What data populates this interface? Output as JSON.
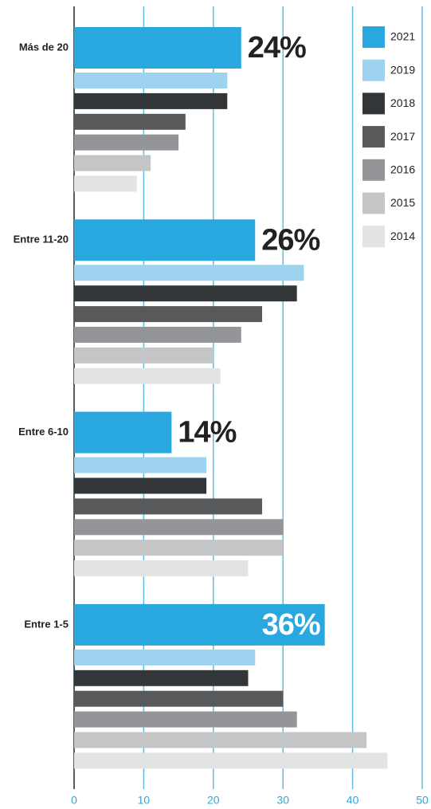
{
  "chart_data": {
    "type": "hbar",
    "categories": [
      "Más de 20",
      "Entre 11-20",
      "Entre 6-10",
      "Entre 1-5"
    ],
    "series": [
      {
        "name": "2021",
        "color": "#29a8e0",
        "values": [
          24,
          26,
          14,
          36
        ],
        "value_labels": [
          "24%",
          "26%",
          "14%",
          "36%"
        ]
      },
      {
        "name": "2019",
        "color": "#9dd3ef",
        "values": [
          22,
          33,
          19,
          26
        ]
      },
      {
        "name": "2018",
        "color": "#333638",
        "values": [
          22,
          32,
          19,
          25
        ]
      },
      {
        "name": "2017",
        "color": "#58595b",
        "values": [
          16,
          27,
          27,
          30
        ]
      },
      {
        "name": "2016",
        "color": "#939598",
        "values": [
          15,
          24,
          30,
          32
        ]
      },
      {
        "name": "2015",
        "color": "#c4c5c6",
        "values": [
          11,
          20,
          30,
          42
        ]
      },
      {
        "name": "2014",
        "color": "#e2e3e3",
        "values": [
          9,
          21,
          25,
          45
        ]
      }
    ],
    "xlim": [
      0,
      50
    ],
    "xticks": [
      0,
      10,
      20,
      30,
      40,
      50
    ],
    "grid": true,
    "legend": "upper right"
  }
}
